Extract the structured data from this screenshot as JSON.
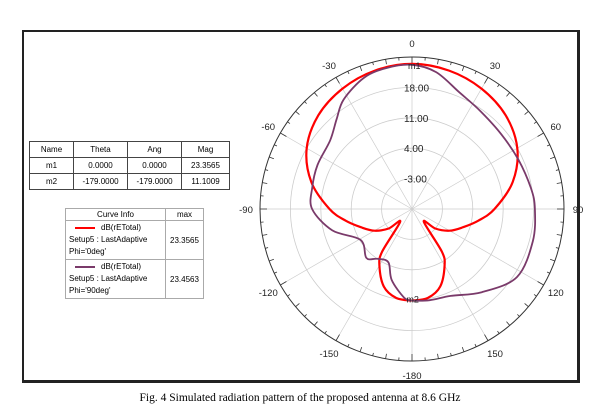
{
  "chart_data": {
    "type": "polar",
    "r_ticks": [
      "-3.00",
      "4.00",
      "11.00",
      "18.00"
    ],
    "r_values": [
      -3,
      4,
      11,
      18
    ],
    "r_range": [
      -10,
      25
    ],
    "angle_labels": [
      "0",
      "30",
      "60",
      "90",
      "120",
      "150",
      "-180",
      "-150",
      "-120",
      "-90",
      "-60",
      "-30"
    ],
    "angle_values": [
      0,
      30,
      60,
      90,
      120,
      150,
      180,
      -150,
      -120,
      -90,
      -60,
      -30
    ],
    "series": [
      {
        "name": "dB(rETotal) Setup5 : LastAdaptive Phi='0deg'",
        "color": "#ff0000",
        "theta": [
          -180,
          -170,
          -160,
          -150,
          -145,
          -137,
          -130,
          -120,
          -110,
          -100,
          -90,
          -75,
          -60,
          -45,
          -30,
          -15,
          0,
          15,
          30,
          45,
          60,
          75,
          90,
          100,
          110,
          120,
          130,
          137,
          145,
          150,
          160,
          170,
          180
        ],
        "db": [
          11.1,
          10.8,
          9,
          5,
          2,
          -6,
          -3,
          0,
          2.4,
          5.5,
          9,
          14,
          18,
          20.5,
          22,
          23,
          23.4,
          23,
          22,
          20.5,
          18,
          14,
          9,
          5.5,
          2.4,
          0,
          -3,
          -6,
          2,
          5,
          9,
          10.8,
          11.1
        ]
      },
      {
        "name": "dB(rETotal) Setup5 : LastAdaptive Phi='90deg'",
        "color": "#7a3a6a",
        "theta": [
          -180,
          -175,
          -164,
          -156,
          -145,
          -137,
          -121,
          -105,
          -90,
          -78,
          -65,
          -50,
          -40,
          -32,
          -20,
          -10,
          0,
          10,
          22,
          35,
          50,
          65,
          80,
          90,
          105,
          123,
          140,
          156,
          169,
          180
        ],
        "db": [
          11.1,
          10.5,
          7,
          3.4,
          4,
          5.4,
          3.8,
          9,
          13,
          13.5,
          14,
          14.6,
          17,
          19.7,
          22.2,
          23,
          23.2,
          22,
          19,
          17.5,
          16.8,
          17,
          17.8,
          18.3,
          18.8,
          18.8,
          15,
          11.9,
          11.4,
          11.1
        ]
      }
    ],
    "markers": [
      {
        "name": "m1",
        "theta": 0,
        "db": 23.3565
      },
      {
        "name": "m2",
        "theta": -179,
        "db": 11.1009
      }
    ]
  },
  "marker_table": {
    "headers": [
      "Name",
      "Theta",
      "Ang",
      "Mag"
    ],
    "rows": [
      [
        "m1",
        "0.0000",
        "0.0000",
        "23.3565"
      ],
      [
        "m2",
        "-179.0000",
        "-179.0000",
        "11.1009"
      ]
    ]
  },
  "curve_info": {
    "headers": [
      "Curve Info",
      "max"
    ],
    "rows": [
      {
        "l1": "dB(rETotal)",
        "l2": "Setup5 : LastAdaptive",
        "l3": "Phi='0deg'",
        "max": "23.3565",
        "color": "#ff0000"
      },
      {
        "l1": "dB(rETotal)",
        "l2": "Setup5 : LastAdaptive",
        "l3": "Phi='90deg'",
        "max": "23.4563",
        "color": "#7a3a6a"
      }
    ]
  },
  "caption": "Fig. 4 Simulated radiation pattern of the proposed antenna at 8.6 GHz"
}
